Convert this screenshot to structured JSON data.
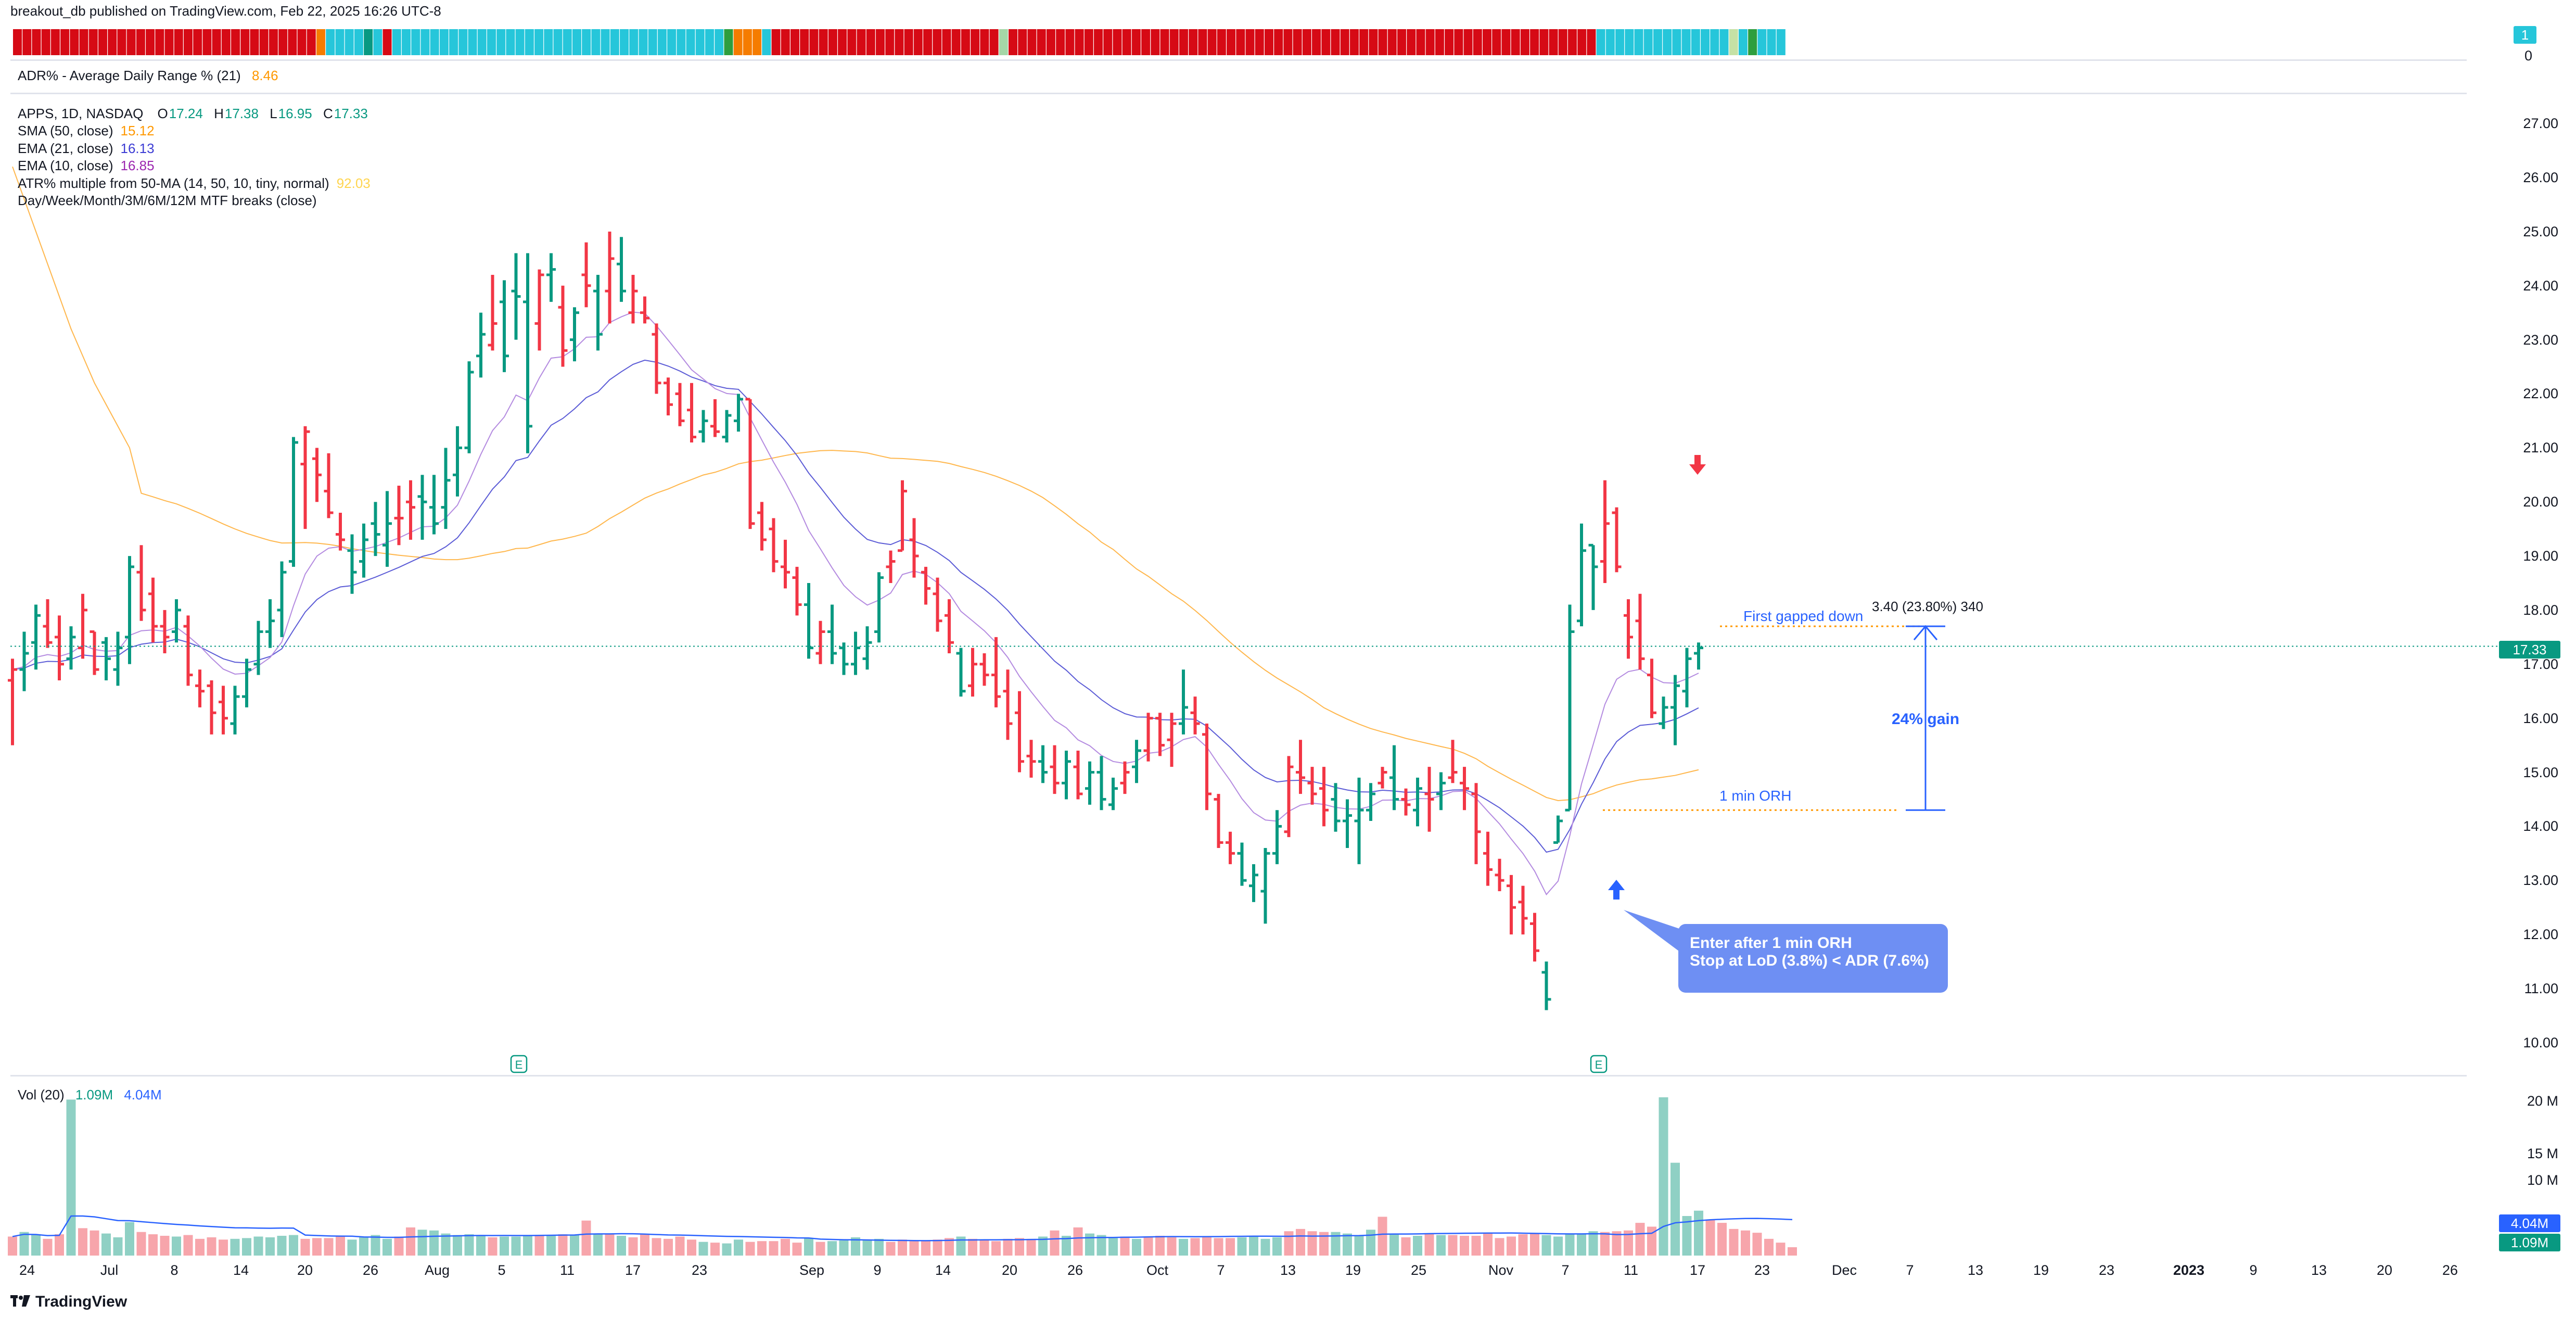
{
  "header": {
    "published": "breakout_db published on TradingView.com, Feb 22, 2025 16:26 UTC-8",
    "brand": "TradingView"
  },
  "adr_pane": {
    "label": "ADR% - Average Daily Range % (21)",
    "value": "8.46",
    "badge_value": "1",
    "zero": "0",
    "color_cells": [
      "#d60a15",
      "#d60a15",
      "#d60a15",
      "#d60a15",
      "#d60a15",
      "#d60a15",
      "#d60a15",
      "#d60a15",
      "#d60a15",
      "#d60a15",
      "#d60a15",
      "#d60a15",
      "#d60a15",
      "#d60a15",
      "#d60a15",
      "#d60a15",
      "#d60a15",
      "#d60a15",
      "#d60a15",
      "#d60a15",
      "#d60a15",
      "#d60a15",
      "#d60a15",
      "#d60a15",
      "#d60a15",
      "#d60a15",
      "#d60a15",
      "#d60a15",
      "#d60a15",
      "#d60a15",
      "#d60a15",
      "#d60a15",
      "#f57c00",
      "#26c6da",
      "#26c6da",
      "#26c6da",
      "#26c6da",
      "#089981",
      "#26c6da",
      "#d60a15",
      "#26c6da",
      "#26c6da",
      "#26c6da",
      "#26c6da",
      "#26c6da",
      "#26c6da",
      "#26c6da",
      "#26c6da",
      "#26c6da",
      "#26c6da",
      "#26c6da",
      "#26c6da",
      "#26c6da",
      "#26c6da",
      "#26c6da",
      "#26c6da",
      "#26c6da",
      "#26c6da",
      "#26c6da",
      "#26c6da",
      "#26c6da",
      "#26c6da",
      "#26c6da",
      "#26c6da",
      "#26c6da",
      "#26c6da",
      "#26c6da",
      "#26c6da",
      "#26c6da",
      "#26c6da",
      "#26c6da",
      "#26c6da",
      "#26c6da",
      "#26c6da",
      "#26c6da",
      "#2e9e3e",
      "#f57c00",
      "#f57c00",
      "#f57c00",
      "#26c6da",
      "#d60a15",
      "#d60a15",
      "#d60a15",
      "#d60a15",
      "#d60a15",
      "#d60a15",
      "#d60a15",
      "#d60a15",
      "#d60a15",
      "#d60a15",
      "#d60a15",
      "#d60a15",
      "#d60a15",
      "#d60a15",
      "#d60a15",
      "#d60a15",
      "#d60a15",
      "#d60a15",
      "#d60a15",
      "#d60a15",
      "#d60a15",
      "#d60a15",
      "#d60a15",
      "#d60a15",
      "#a5d6a7",
      "#d60a15",
      "#d60a15",
      "#d60a15",
      "#d60a15",
      "#d60a15",
      "#d60a15",
      "#d60a15",
      "#d60a15",
      "#d60a15",
      "#d60a15",
      "#d60a15",
      "#d60a15",
      "#d60a15",
      "#d60a15",
      "#d60a15",
      "#d60a15",
      "#d60a15",
      "#d60a15",
      "#d60a15",
      "#d60a15",
      "#d60a15",
      "#d60a15",
      "#d60a15",
      "#d60a15",
      "#d60a15",
      "#d60a15",
      "#d60a15",
      "#d60a15",
      "#d60a15",
      "#d60a15",
      "#d60a15",
      "#d60a15",
      "#d60a15",
      "#d60a15",
      "#d60a15",
      "#d60a15",
      "#d60a15",
      "#d60a15",
      "#d60a15",
      "#d60a15",
      "#d60a15",
      "#d60a15",
      "#d60a15",
      "#d60a15",
      "#d60a15",
      "#d60a15",
      "#d60a15",
      "#d60a15",
      "#d60a15",
      "#d60a15",
      "#d60a15",
      "#d60a15",
      "#d60a15",
      "#d60a15",
      "#d60a15",
      "#d60a15",
      "#d60a15",
      "#d60a15",
      "#d60a15",
      "#d60a15",
      "#d60a15",
      "#d60a15",
      "#26c6da",
      "#26c6da",
      "#26c6da",
      "#26c6da",
      "#26c6da",
      "#26c6da",
      "#26c6da",
      "#26c6da",
      "#26c6da",
      "#26c6da",
      "#26c6da",
      "#26c6da",
      "#26c6da",
      "#26c6da",
      "#c5e1a5",
      "#26c6da",
      "#2e9e3e",
      "#26c6da",
      "#26c6da",
      "#26c6da"
    ]
  },
  "legend": {
    "symbol": "APPS, 1D, NASDAQ",
    "o_label": "O",
    "o": "17.24",
    "h_label": "H",
    "h": "17.38",
    "l_label": "L",
    "l": "16.95",
    "c_label": "C",
    "c": "17.33",
    "sma50_label": "SMA (50, close)",
    "sma50_value": "15.12",
    "ema21_label": "EMA (21, close)",
    "ema21_value": "16.13",
    "ema10_label": "EMA (10, close)",
    "ema10_value": "16.85",
    "atr_label": "ATR% multiple from 50-MA (14, 50, 10, tiny, normal)",
    "atr_value": "92.03",
    "mtf_label": "Day/Week/Month/3M/6M/12M MTF breaks (close)"
  },
  "volume_pane": {
    "label": "Vol (20)",
    "vol_value": "1.09M",
    "ma_value": "4.04M",
    "tag_ma": "4.04M",
    "tag_vol": "1.09M",
    "y_ticks": [
      "20 M",
      "15 M",
      "10 M"
    ]
  },
  "price_tag": "17.33",
  "annotations": {
    "callout": "Enter after 1 min ORH\nStop at LoD (3.8%) < ADR (7.6%)",
    "first_gapped_down": "First gapped down",
    "measure": "3.40 (23.80%) 340",
    "gain": "24% gain",
    "orh": "1 min ORH",
    "earnings_marker": "E"
  },
  "colors": {
    "up": "#089981",
    "down": "#f23645",
    "sma50": "#ffb74d",
    "ema21": "#5b5bd6",
    "ema10": "#b48be0",
    "annotation_blue": "#2962ff",
    "orange_dotted": "#ff9800"
  },
  "chart_data": {
    "type": "ohlc",
    "title": "APPS, 1D, NASDAQ",
    "y_ticks": [
      10,
      11,
      12,
      13,
      14,
      15,
      16,
      17,
      18,
      19,
      20,
      21,
      22,
      23,
      24,
      25,
      26,
      27
    ],
    "ylim": [
      9.5,
      27.6
    ],
    "x_ticks": [
      "24",
      "Jul",
      "8",
      "14",
      "20",
      "26",
      "Aug",
      "5",
      "11",
      "17",
      "23",
      "Sep",
      "9",
      "14",
      "20",
      "26",
      "Oct",
      "7",
      "13",
      "19",
      "25",
      "Nov",
      "7",
      "11",
      "17",
      "23",
      "Dec",
      "7",
      "13",
      "19",
      "23",
      "2023",
      "9",
      "13",
      "20",
      "26"
    ],
    "ohlc": [
      [
        16.7,
        17.1,
        15.5,
        16.9
      ],
      [
        16.9,
        17.6,
        16.5,
        17.2
      ],
      [
        17.4,
        18.1,
        16.9,
        17.9
      ],
      [
        17.7,
        18.2,
        17.3,
        17.4
      ],
      [
        17.5,
        17.9,
        16.7,
        17.0
      ],
      [
        17.1,
        17.7,
        16.9,
        17.5
      ],
      [
        17.3,
        18.3,
        17.1,
        18.0
      ],
      [
        17.6,
        17.6,
        16.8,
        16.9
      ],
      [
        17.4,
        17.5,
        16.7,
        17.1
      ],
      [
        16.9,
        17.6,
        16.6,
        17.3
      ],
      [
        17.5,
        19.0,
        17.0,
        18.8
      ],
      [
        18.7,
        19.2,
        17.8,
        18.0
      ],
      [
        18.3,
        18.6,
        17.4,
        17.7
      ],
      [
        17.7,
        18.0,
        17.2,
        17.5
      ],
      [
        17.6,
        18.2,
        17.4,
        18.0
      ],
      [
        17.7,
        17.9,
        16.6,
        16.8
      ],
      [
        16.6,
        16.9,
        16.2,
        16.5
      ],
      [
        16.6,
        16.7,
        15.7,
        16.1
      ],
      [
        16.3,
        16.6,
        15.7,
        16.0
      ],
      [
        15.9,
        16.6,
        15.7,
        16.4
      ],
      [
        16.4,
        17.1,
        16.2,
        16.9
      ],
      [
        17.0,
        17.8,
        16.8,
        17.6
      ],
      [
        17.6,
        18.2,
        17.3,
        17.8
      ],
      [
        18.0,
        18.9,
        17.5,
        18.7
      ],
      [
        18.9,
        21.2,
        18.8,
        21.1
      ],
      [
        20.7,
        21.4,
        19.5,
        21.3
      ],
      [
        20.8,
        21.0,
        20.0,
        20.5
      ],
      [
        20.2,
        20.9,
        19.7,
        19.8
      ],
      [
        19.4,
        19.8,
        19.1,
        19.3
      ],
      [
        19.1,
        19.4,
        18.3,
        18.7
      ],
      [
        18.9,
        19.6,
        18.6,
        19.3
      ],
      [
        19.6,
        20.0,
        19.0,
        19.4
      ],
      [
        19.2,
        20.2,
        18.8,
        19.6
      ],
      [
        19.7,
        20.3,
        19.2,
        19.7
      ],
      [
        20.0,
        20.4,
        19.3,
        19.9
      ],
      [
        20.1,
        20.5,
        19.3,
        20.0
      ],
      [
        19.9,
        20.5,
        19.4,
        19.6
      ],
      [
        19.9,
        21.0,
        19.5,
        20.4
      ],
      [
        20.5,
        21.4,
        20.1,
        21.0
      ],
      [
        21.0,
        22.6,
        20.9,
        22.4
      ],
      [
        22.7,
        23.5,
        22.3,
        23.1
      ],
      [
        22.9,
        24.2,
        22.8,
        23.3
      ],
      [
        23.7,
        24.1,
        22.4,
        22.7
      ],
      [
        23.9,
        24.6,
        23.0,
        23.8
      ],
      [
        23.7,
        24.6,
        20.9,
        21.4
      ],
      [
        23.3,
        24.3,
        22.8,
        24.2
      ],
      [
        24.2,
        24.6,
        23.7,
        24.3
      ],
      [
        23.6,
        24.0,
        22.5,
        22.8
      ],
      [
        23.0,
        23.6,
        22.6,
        23.5
      ],
      [
        24.2,
        24.8,
        23.6,
        24.0
      ],
      [
        23.9,
        24.2,
        22.8,
        23.1
      ],
      [
        23.9,
        25.0,
        23.3,
        24.5
      ],
      [
        24.4,
        24.9,
        23.7,
        23.9
      ],
      [
        23.5,
        24.2,
        23.3,
        23.9
      ],
      [
        23.5,
        23.8,
        23.3,
        23.4
      ],
      [
        23.1,
        23.3,
        22.0,
        22.2
      ],
      [
        22.2,
        22.3,
        21.6,
        21.8
      ],
      [
        22.0,
        22.2,
        21.4,
        21.5
      ],
      [
        21.7,
        22.2,
        21.1,
        21.2
      ],
      [
        21.3,
        21.7,
        21.1,
        21.5
      ],
      [
        21.4,
        21.9,
        21.2,
        21.3
      ],
      [
        21.2,
        21.7,
        21.1,
        21.6
      ],
      [
        21.5,
        22.0,
        21.3,
        21.9
      ],
      [
        21.9,
        21.9,
        19.5,
        19.6
      ],
      [
        19.8,
        20.0,
        19.1,
        19.3
      ],
      [
        19.5,
        19.7,
        18.7,
        18.9
      ],
      [
        18.8,
        19.3,
        18.4,
        18.7
      ],
      [
        18.6,
        18.8,
        17.9,
        18.1
      ],
      [
        18.1,
        18.5,
        17.1,
        17.3
      ],
      [
        17.2,
        17.8,
        17.0,
        17.6
      ],
      [
        17.6,
        18.1,
        17.0,
        17.2
      ],
      [
        17.3,
        17.4,
        16.8,
        17.0
      ],
      [
        17.0,
        17.6,
        16.8,
        17.3
      ],
      [
        17.1,
        17.7,
        16.9,
        17.4
      ],
      [
        17.6,
        18.7,
        17.4,
        18.6
      ],
      [
        18.8,
        19.1,
        18.5,
        18.9
      ],
      [
        19.1,
        20.4,
        19.1,
        20.2
      ],
      [
        19.3,
        19.7,
        18.6,
        19.0
      ],
      [
        18.7,
        18.8,
        18.1,
        18.4
      ],
      [
        18.3,
        18.6,
        17.6,
        17.8
      ],
      [
        17.9,
        18.2,
        17.2,
        17.4
      ],
      [
        17.2,
        17.3,
        16.4,
        16.5
      ],
      [
        16.6,
        17.3,
        16.4,
        17.0
      ],
      [
        17.0,
        17.2,
        16.6,
        16.8
      ],
      [
        16.8,
        17.5,
        16.2,
        16.4
      ],
      [
        16.5,
        16.9,
        15.6,
        15.9
      ],
      [
        16.1,
        16.5,
        15.0,
        15.2
      ],
      [
        15.3,
        15.6,
        14.9,
        15.2
      ],
      [
        15.2,
        15.5,
        14.8,
        15.0
      ],
      [
        15.1,
        15.5,
        14.6,
        14.8
      ],
      [
        14.8,
        15.4,
        14.5,
        15.2
      ],
      [
        15.1,
        15.4,
        14.5,
        14.6
      ],
      [
        14.7,
        15.2,
        14.4,
        15.0
      ],
      [
        15.0,
        15.3,
        14.3,
        14.5
      ],
      [
        14.4,
        14.9,
        14.3,
        14.7
      ],
      [
        14.8,
        15.2,
        14.6,
        15.0
      ],
      [
        15.1,
        15.6,
        14.8,
        15.4
      ],
      [
        15.4,
        16.1,
        15.2,
        16.0
      ],
      [
        16.0,
        16.1,
        15.3,
        15.5
      ],
      [
        15.6,
        16.1,
        15.1,
        15.9
      ],
      [
        15.9,
        16.9,
        15.7,
        16.2
      ],
      [
        16.1,
        16.4,
        15.7,
        15.9
      ],
      [
        15.7,
        15.9,
        14.3,
        14.6
      ],
      [
        14.5,
        14.6,
        13.6,
        13.7
      ],
      [
        13.7,
        13.9,
        13.3,
        13.5
      ],
      [
        13.5,
        13.7,
        12.9,
        13.0
      ],
      [
        12.9,
        13.3,
        12.6,
        13.1
      ],
      [
        12.8,
        13.6,
        12.2,
        13.5
      ],
      [
        13.5,
        14.3,
        13.3,
        14.0
      ],
      [
        13.9,
        15.3,
        13.8,
        15.1
      ],
      [
        15.0,
        15.6,
        14.6,
        14.9
      ],
      [
        14.8,
        15.1,
        14.4,
        14.6
      ],
      [
        14.7,
        15.1,
        14.0,
        14.3
      ],
      [
        14.5,
        14.8,
        13.9,
        14.1
      ],
      [
        14.1,
        14.5,
        13.6,
        14.2
      ],
      [
        14.1,
        14.9,
        13.3,
        14.3
      ],
      [
        14.3,
        14.8,
        14.1,
        14.6
      ],
      [
        14.8,
        15.1,
        14.7,
        15.0
      ],
      [
        14.9,
        15.5,
        14.3,
        14.5
      ],
      [
        14.5,
        14.7,
        14.2,
        14.4
      ],
      [
        14.3,
        14.9,
        14.0,
        14.7
      ],
      [
        14.6,
        15.1,
        13.9,
        14.5
      ],
      [
        14.6,
        15.0,
        14.3,
        14.8
      ],
      [
        14.9,
        15.6,
        14.8,
        15.0
      ],
      [
        14.8,
        15.1,
        14.3,
        14.7
      ],
      [
        14.6,
        14.8,
        13.3,
        13.9
      ],
      [
        13.5,
        13.9,
        12.9,
        13.2
      ],
      [
        13.1,
        13.4,
        12.8,
        13.0
      ],
      [
        12.9,
        13.1,
        12.0,
        12.5
      ],
      [
        12.6,
        12.9,
        12.0,
        12.3
      ],
      [
        12.2,
        12.4,
        11.5,
        11.7
      ],
      [
        11.3,
        11.5,
        10.6,
        10.8
      ],
      [
        13.7,
        14.2,
        13.7,
        14.1
      ],
      [
        14.3,
        18.1,
        14.3,
        17.6
      ],
      [
        17.8,
        19.6,
        17.7,
        19.1
      ],
      [
        19.2,
        19.2,
        18.0,
        18.8
      ],
      [
        18.9,
        20.4,
        18.5,
        19.6
      ],
      [
        19.8,
        19.9,
        18.7,
        18.8
      ],
      [
        17.9,
        18.2,
        17.1,
        17.5
      ],
      [
        17.8,
        18.3,
        16.9,
        17.1
      ],
      [
        16.8,
        17.1,
        16.0,
        16.1
      ],
      [
        15.9,
        16.4,
        15.8,
        16.2
      ],
      [
        16.2,
        16.8,
        15.5,
        16.6
      ],
      [
        16.5,
        17.3,
        16.2,
        17.1
      ],
      [
        17.2,
        17.4,
        16.9,
        17.3
      ]
    ],
    "ohlc_dir": "dUUDDUDDUUUDDDUDDDDUUUUUUDDDDUUUUDDUUUUUUDUUUDUDUDUDUDDDDDDUDUUDDDDDUDUUUUUDDDDDDUDDDDDDUDUDUUUDUDDDUDDDDUUUUDDDDUUUUDUDUDUDDDDDDDDUUUUUDDDDDUUUU",
    "volume_millions": [
      2.5,
      3.1,
      2.7,
      2.2,
      2.8,
      20.5,
      3.6,
      3.3,
      2.9,
      2.4,
      4.4,
      3.1,
      2.8,
      2.6,
      2.5,
      2.7,
      2.2,
      2.4,
      2.1,
      2.2,
      2.3,
      2.5,
      2.4,
      2.6,
      2.7,
      2.2,
      2.3,
      2.3,
      2.5,
      2.1,
      2.4,
      2.7,
      2.2,
      2.5,
      3.7,
      3.4,
      3.3,
      2.9,
      2.7,
      2.8,
      2.6,
      2.4,
      2.5,
      2.5,
      2.6,
      2.6,
      2.6,
      2.8,
      2.7,
      4.6,
      2.8,
      2.8,
      2.6,
      2.4,
      2.8,
      2.3,
      2.2,
      2.5,
      2.1,
      1.8,
      1.7,
      1.6,
      2.1,
      1.8,
      1.9,
      1.9,
      2.2,
      1.7,
      2.3,
      1.8,
      1.9,
      2.0,
      2.4,
      2.1,
      2.2,
      1.8,
      2.1,
      1.9,
      2.0,
      2.1,
      2.3,
      2.5,
      2.2,
      2.1,
      1.9,
      2.2,
      2.3,
      2.2,
      2.5,
      3.3,
      2.6,
      3.7,
      2.9,
      2.7,
      2.3,
      2.5,
      2.2,
      2.5,
      2.6,
      2.4,
      2.2,
      2.3,
      2.4,
      2.3,
      2.3,
      2.4,
      2.6,
      2.2,
      2.4,
      3.2,
      3.5,
      3.2,
      3.1,
      3.1,
      2.9,
      2.7,
      3.4,
      5.1,
      2.9,
      2.4,
      2.6,
      2.9,
      2.7,
      2.7,
      2.6,
      2.6,
      2.9,
      2.3,
      2.5,
      2.8,
      2.9,
      2.7,
      2.5,
      2.8,
      2.9,
      3.2,
      3.1,
      3.2,
      3.3,
      4.3,
      3.8,
      20.8,
      12.2,
      5.2,
      5.9,
      4.7,
      4.3,
      3.5,
      3.3,
      3.0,
      2.2,
      1.7,
      1.1
    ],
    "sma50": [],
    "ema21": [],
    "ema10": []
  }
}
